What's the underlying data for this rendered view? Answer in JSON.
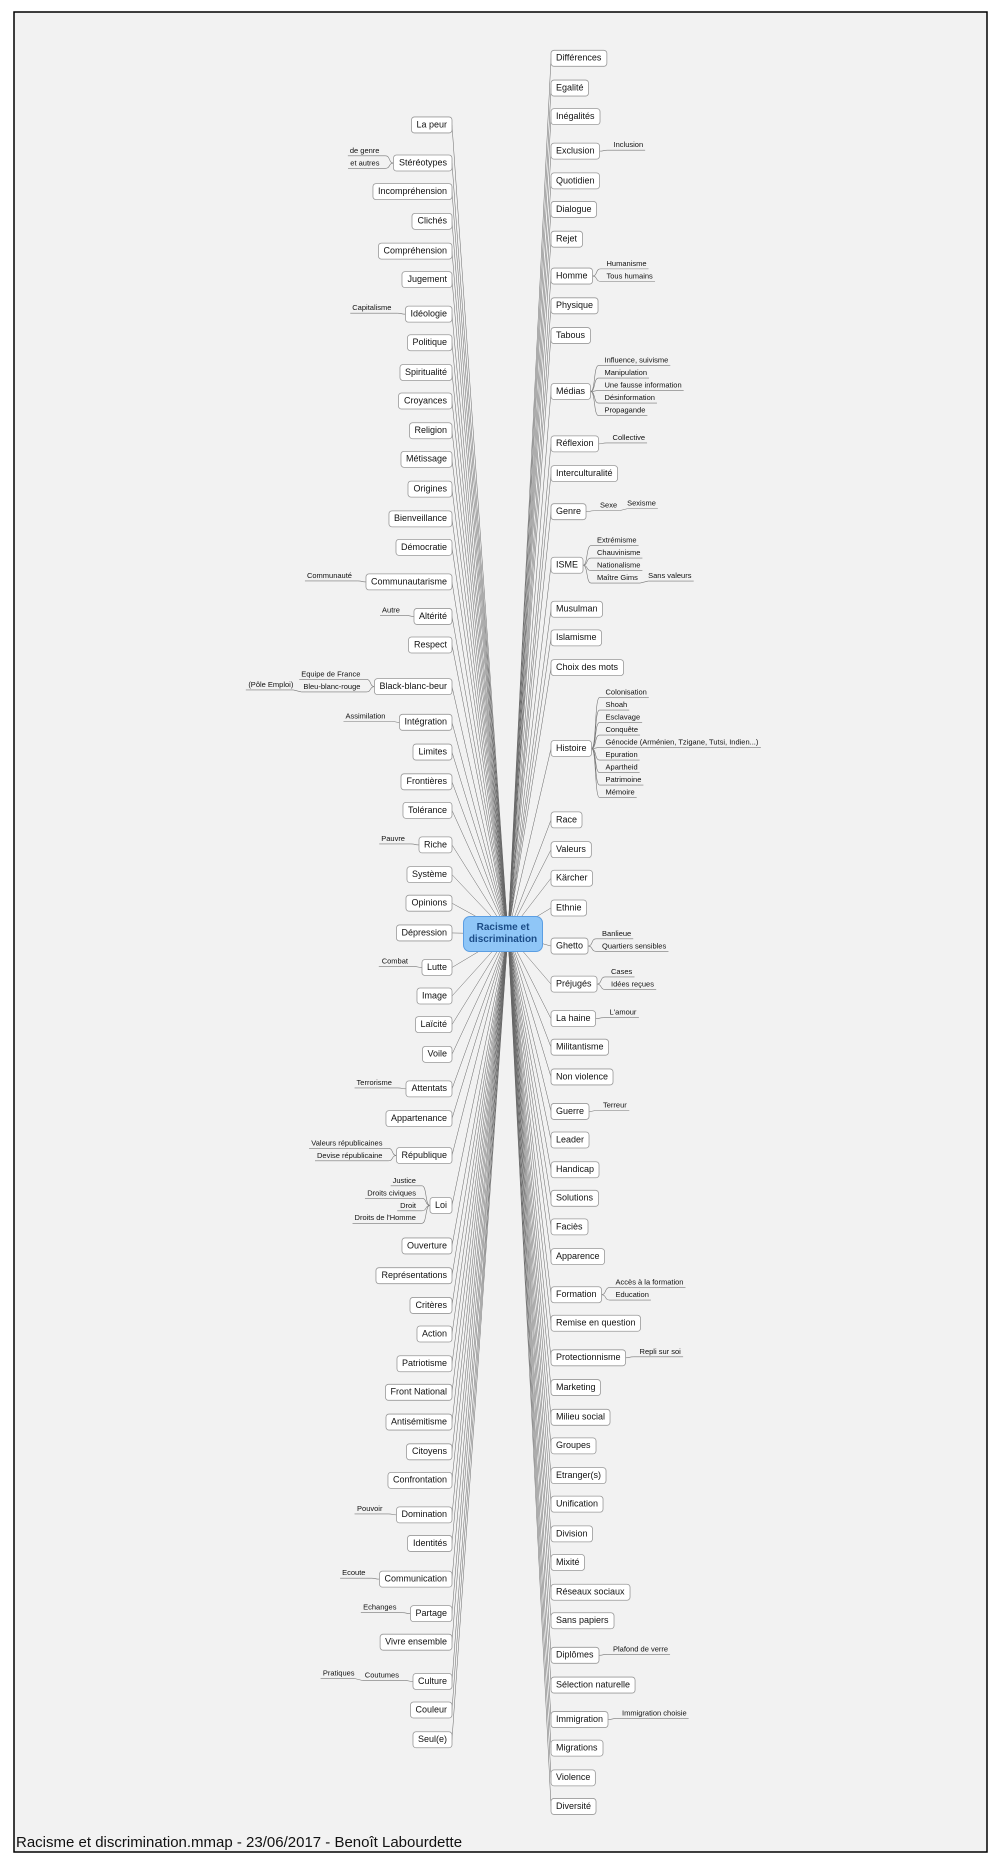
{
  "center": "Racisme et discrimination",
  "left": [
    {
      "label": "La peur"
    },
    {
      "label": "Stéréotypes",
      "children": [
        {
          "label": "de genre"
        },
        {
          "label": "et autres"
        }
      ]
    },
    {
      "label": "Incompréhension"
    },
    {
      "label": "Clichés"
    },
    {
      "label": "Compréhension"
    },
    {
      "label": "Jugement"
    },
    {
      "label": "Idéologie",
      "children": [
        {
          "label": "Capitalisme"
        }
      ]
    },
    {
      "label": "Politique"
    },
    {
      "label": "Spiritualité"
    },
    {
      "label": "Croyances"
    },
    {
      "label": "Religion"
    },
    {
      "label": "Métissage"
    },
    {
      "label": "Origines"
    },
    {
      "label": "Bienveillance"
    },
    {
      "label": "Démocratie"
    },
    {
      "label": "Communautarisme",
      "children": [
        {
          "label": "Communauté"
        }
      ]
    },
    {
      "label": "Altérité",
      "children": [
        {
          "label": "Autre"
        }
      ]
    },
    {
      "label": "Respect"
    },
    {
      "label": "Black-blanc-beur",
      "children": [
        {
          "label": "Equipe de France"
        },
        {
          "label": "Bleu-blanc-rouge",
          "children": [
            {
              "label": "(Pôle Emploi)"
            }
          ]
        }
      ]
    },
    {
      "label": "Intégration",
      "children": [
        {
          "label": "Assimilation"
        }
      ]
    },
    {
      "label": "Limites"
    },
    {
      "label": "Frontières"
    },
    {
      "label": "Tolérance"
    },
    {
      "label": "Riche",
      "children": [
        {
          "label": "Pauvre"
        }
      ]
    },
    {
      "label": "Système"
    },
    {
      "label": "Opinions"
    },
    {
      "label": "Dépression"
    },
    {
      "label": "Lutte",
      "children": [
        {
          "label": "Combat"
        }
      ]
    },
    {
      "label": "Image"
    },
    {
      "label": "Laïcité"
    },
    {
      "label": "Voile"
    },
    {
      "label": "Attentats",
      "children": [
        {
          "label": "Terrorisme"
        }
      ]
    },
    {
      "label": "Appartenance"
    },
    {
      "label": "République",
      "children": [
        {
          "label": "Valeurs républicaines"
        },
        {
          "label": "Devise républicaine"
        }
      ]
    },
    {
      "label": "Loi",
      "children": [
        {
          "label": "Justice"
        },
        {
          "label": "Droits civiques"
        },
        {
          "label": "Droit"
        },
        {
          "label": "Droits de l'Homme"
        }
      ]
    },
    {
      "label": "Ouverture"
    },
    {
      "label": "Représentations"
    },
    {
      "label": "Critères"
    },
    {
      "label": "Action"
    },
    {
      "label": "Patriotisme"
    },
    {
      "label": "Front National"
    },
    {
      "label": "Antisémitisme"
    },
    {
      "label": "Citoyens"
    },
    {
      "label": "Confrontation"
    },
    {
      "label": "Domination",
      "children": [
        {
          "label": "Pouvoir"
        }
      ]
    },
    {
      "label": "Identités"
    },
    {
      "label": "Communication",
      "children": [
        {
          "label": "Ecoute"
        }
      ]
    },
    {
      "label": "Partage",
      "children": [
        {
          "label": "Echanges"
        }
      ]
    },
    {
      "label": "Vivre ensemble"
    },
    {
      "label": "Culture",
      "children": [
        {
          "label": "Coutumes",
          "children": [
            {
              "label": "Pratiques"
            }
          ]
        }
      ]
    },
    {
      "label": "Couleur"
    },
    {
      "label": "Seul(e)"
    }
  ],
  "right": [
    {
      "label": "Différences"
    },
    {
      "label": "Egalité"
    },
    {
      "label": "Inégalités"
    },
    {
      "label": "Exclusion",
      "children": [
        {
          "label": "Inclusion"
        }
      ]
    },
    {
      "label": "Quotidien"
    },
    {
      "label": "Dialogue"
    },
    {
      "label": "Rejet"
    },
    {
      "label": "Homme",
      "children": [
        {
          "label": "Humanisme"
        },
        {
          "label": "Tous humains"
        }
      ]
    },
    {
      "label": "Physique"
    },
    {
      "label": "Tabous"
    },
    {
      "label": "Médias",
      "children": [
        {
          "label": "Influence, suivisme"
        },
        {
          "label": "Manipulation"
        },
        {
          "label": "Une fausse information"
        },
        {
          "label": "Désinformation"
        },
        {
          "label": "Propagande"
        }
      ]
    },
    {
      "label": "Réflexion",
      "children": [
        {
          "label": "Collective"
        }
      ]
    },
    {
      "label": "Interculturalité"
    },
    {
      "label": "Genre",
      "children": [
        {
          "label": "Sexe",
          "children": [
            {
              "label": "Sexisme"
            }
          ]
        }
      ]
    },
    {
      "label": "ISME",
      "children": [
        {
          "label": "Extrémisme"
        },
        {
          "label": "Chauvinisme"
        },
        {
          "label": "Nationalisme"
        },
        {
          "label": "Maître Gims",
          "children": [
            {
              "label": "Sans valeurs"
            }
          ]
        }
      ]
    },
    {
      "label": "Musulman"
    },
    {
      "label": "Islamisme"
    },
    {
      "label": "Choix des mots"
    },
    {
      "label": "Histoire",
      "children": [
        {
          "label": "Colonisation"
        },
        {
          "label": "Shoah"
        },
        {
          "label": "Esclavage"
        },
        {
          "label": "Conquête"
        },
        {
          "label": "Génocide (Arménien, Tzigane, Tutsi, Indien...)"
        },
        {
          "label": "Epuration"
        },
        {
          "label": "Apartheid"
        },
        {
          "label": "Patrimoine"
        },
        {
          "label": "Mémoire"
        }
      ]
    },
    {
      "label": "Race"
    },
    {
      "label": "Valeurs"
    },
    {
      "label": "Kärcher"
    },
    {
      "label": "Ethnie"
    },
    {
      "label": "Ghetto",
      "children": [
        {
          "label": "Banlieue"
        },
        {
          "label": "Quartiers sensibles"
        }
      ]
    },
    {
      "label": "Préjugés",
      "children": [
        {
          "label": "Cases"
        },
        {
          "label": "Idées reçues"
        }
      ]
    },
    {
      "label": "La haine",
      "children": [
        {
          "label": "L'amour"
        }
      ]
    },
    {
      "label": "Militantisme"
    },
    {
      "label": "Non violence"
    },
    {
      "label": "Guerre",
      "children": [
        {
          "label": "Terreur"
        }
      ]
    },
    {
      "label": "Leader"
    },
    {
      "label": "Handicap"
    },
    {
      "label": "Solutions"
    },
    {
      "label": "Faciès"
    },
    {
      "label": "Apparence"
    },
    {
      "label": "Formation",
      "children": [
        {
          "label": "Accès à la formation"
        },
        {
          "label": "Education"
        }
      ]
    },
    {
      "label": "Remise en question"
    },
    {
      "label": "Protectionnisme",
      "children": [
        {
          "label": "Repli sur soi"
        }
      ]
    },
    {
      "label": "Marketing"
    },
    {
      "label": "Milieu social"
    },
    {
      "label": "Groupes"
    },
    {
      "label": "Etranger(s)"
    },
    {
      "label": "Unification"
    },
    {
      "label": "Division"
    },
    {
      "label": "Mixité"
    },
    {
      "label": "Réseaux sociaux"
    },
    {
      "label": "Sans papiers"
    },
    {
      "label": "Diplômes",
      "children": [
        {
          "label": "Plafond de verre"
        }
      ]
    },
    {
      "label": "Sélection naturelle"
    },
    {
      "label": "Immigration",
      "children": [
        {
          "label": "Immigration choisie"
        }
      ]
    },
    {
      "label": "Migrations"
    },
    {
      "label": "Violence"
    },
    {
      "label": "Diversité"
    }
  ],
  "footer": "Racisme et discrimination.mmap - 23/06/2017 - Benoît Labourdette"
}
